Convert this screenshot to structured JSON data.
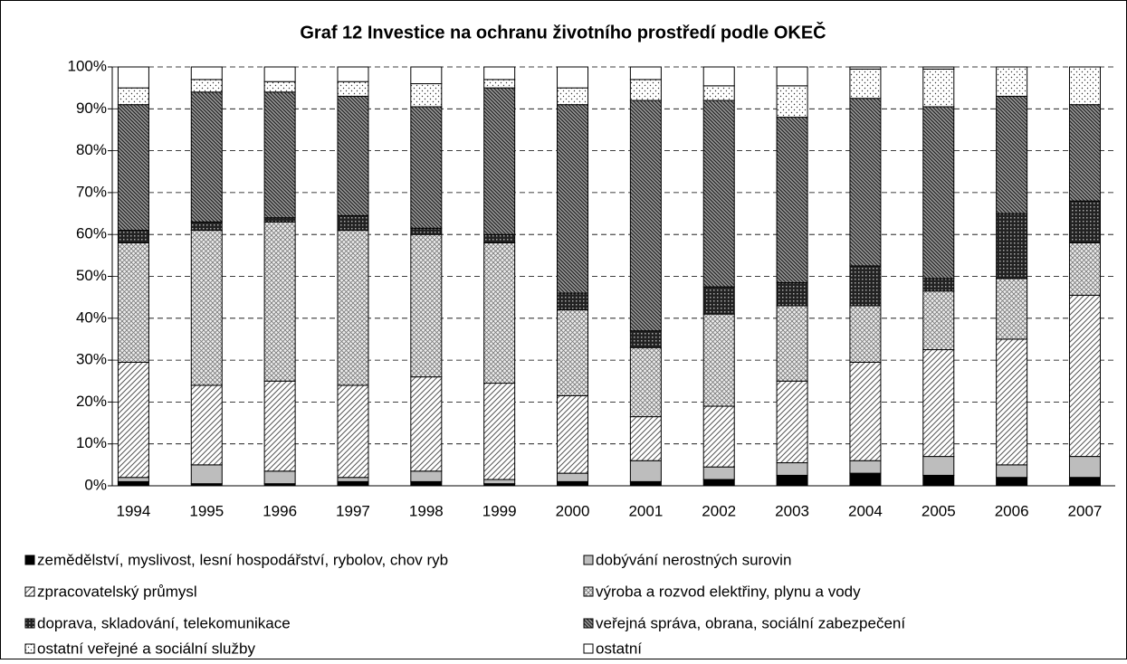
{
  "chart_data": {
    "type": "stacked_bar",
    "title": "Graf 12 Investice na ochranu životního prostředí podle OKEČ",
    "categories": [
      "1994",
      "1995",
      "1996",
      "1997",
      "1998",
      "1999",
      "2000",
      "2001",
      "2002",
      "2003",
      "2004",
      "2005",
      "2006",
      "2007"
    ],
    "series": [
      {
        "name": "zemědělství, myslivost, lesní hospodářství, rybolov, chov ryb",
        "color": "#000000",
        "values": [
          1,
          0.5,
          0.5,
          1,
          1,
          0.5,
          1,
          1,
          1.5,
          2.5,
          3,
          2.5,
          2,
          2
        ]
      },
      {
        "name": "dobývání nerostných surovin",
        "color": "#c0c0c0",
        "values": [
          1,
          4.5,
          3,
          1,
          2.5,
          1,
          2,
          5,
          3,
          3,
          3,
          4.5,
          3,
          5
        ]
      },
      {
        "name": "zpracovatelský průmysl",
        "color": "#e0e0e0",
        "values": [
          27.5,
          19,
          21.5,
          22,
          22.5,
          23,
          18.5,
          10.5,
          14.5,
          19.5,
          23.5,
          25.5,
          30,
          38.5
        ]
      },
      {
        "name": "výroba a rozvod elektřiny, plynu a vody",
        "color": "#d0d0d0",
        "values": [
          28.5,
          37,
          38,
          37,
          34,
          33.5,
          20.5,
          16.5,
          22,
          18,
          13.5,
          14,
          14.5,
          12.5
        ]
      },
      {
        "name": "doprava, skladování, telekomunikace",
        "color": "#303030",
        "values": [
          3,
          2,
          1,
          3.5,
          1.5,
          2,
          4,
          4,
          6.5,
          5.5,
          9.5,
          3,
          15.5,
          10
        ]
      },
      {
        "name": "veřejná správa, obrana, sociální zabezpečení",
        "color": "#808080",
        "values": [
          30,
          31,
          30,
          28.5,
          29,
          35,
          45,
          55,
          44.5,
          39.5,
          40,
          41,
          28,
          23
        ]
      },
      {
        "name": "ostatní veřejné a sociální služby",
        "color": "#f0f0f0",
        "values": [
          4,
          3,
          2.5,
          3.5,
          5.5,
          2,
          4,
          5,
          3.5,
          7.5,
          7,
          9,
          7,
          9
        ]
      },
      {
        "name": "ostatní",
        "color": "#ffffff",
        "values": [
          5,
          3,
          3.5,
          3.5,
          4,
          3,
          5,
          3,
          4.5,
          4.5,
          0.5,
          0.5,
          0,
          0
        ]
      }
    ],
    "ylim": [
      0,
      100
    ],
    "yticks": [
      {
        "value": 0,
        "label": "0%"
      },
      {
        "value": 10,
        "label": "10%"
      },
      {
        "value": 20,
        "label": "20%"
      },
      {
        "value": 30,
        "label": "30%"
      },
      {
        "value": 40,
        "label": "40%"
      },
      {
        "value": 50,
        "label": "50%"
      },
      {
        "value": 60,
        "label": "60%"
      },
      {
        "value": 70,
        "label": "70%"
      },
      {
        "value": 80,
        "label": "80%"
      },
      {
        "value": 90,
        "label": "90%"
      },
      {
        "value": 100,
        "label": "100%"
      }
    ],
    "grid": true
  }
}
